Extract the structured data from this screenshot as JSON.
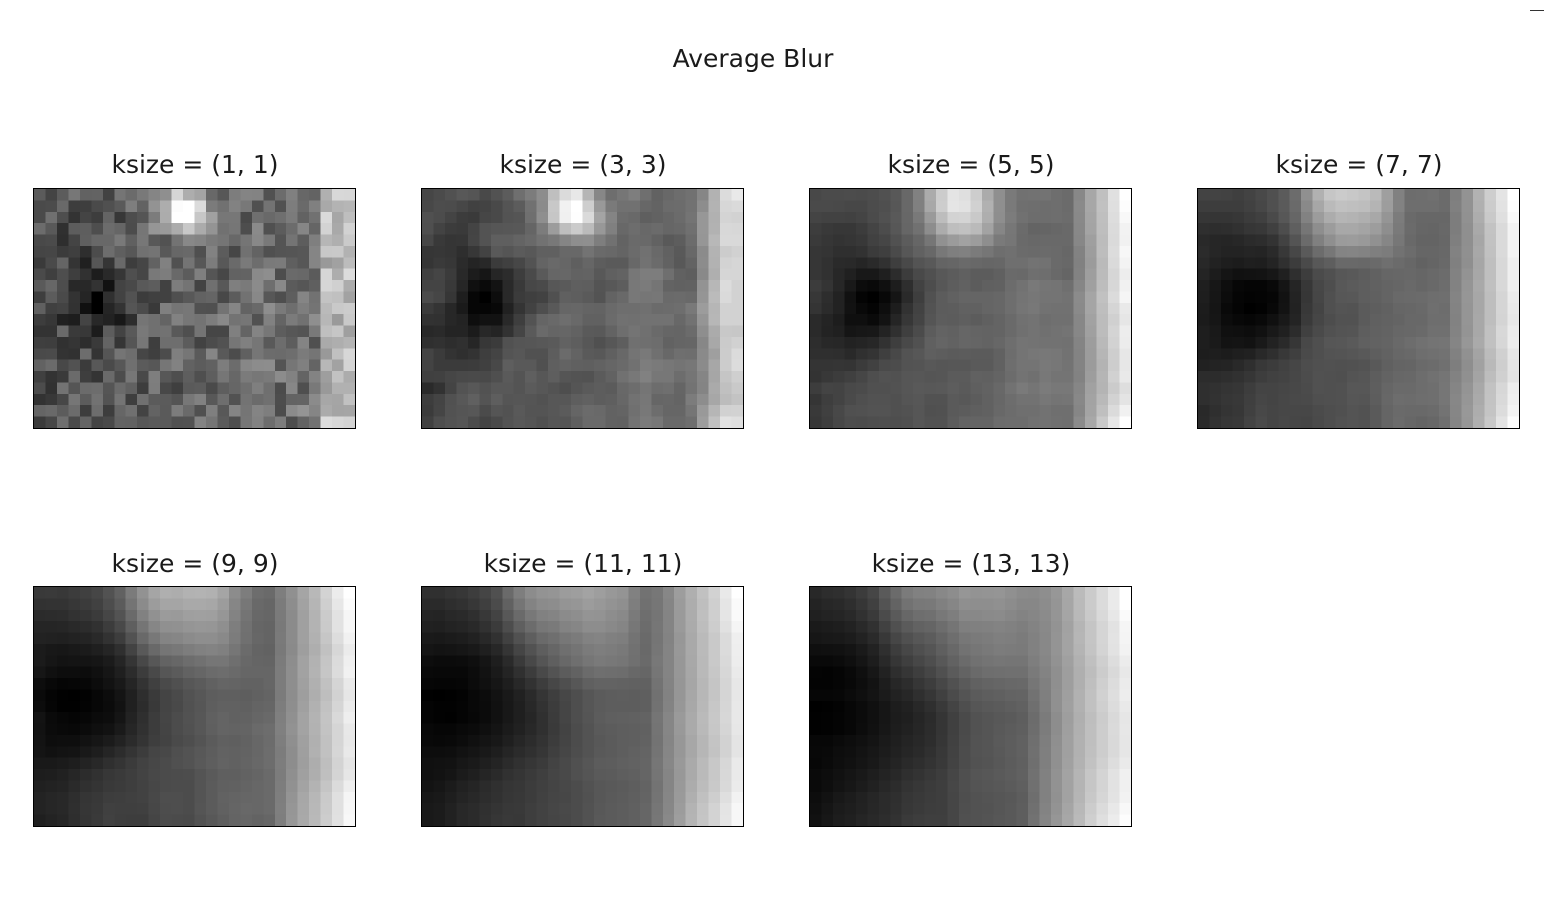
{
  "chart_data": {
    "type": "heatmap",
    "title": "Average Blur",
    "colormap": "gray",
    "grid_resolution": [
      28,
      21
    ],
    "panels": [
      {
        "title": "ksize = (1, 1)",
        "k": 1
      },
      {
        "title": "ksize = (3, 3)",
        "k": 3
      },
      {
        "title": "ksize = (5, 5)",
        "k": 5
      },
      {
        "title": "ksize = (7, 7)",
        "k": 7
      },
      {
        "title": "ksize = (9, 9)",
        "k": 9
      },
      {
        "title": "ksize = (11, 11)",
        "k": 11
      },
      {
        "title": "ksize = (13, 13)",
        "k": 13
      }
    ]
  }
}
